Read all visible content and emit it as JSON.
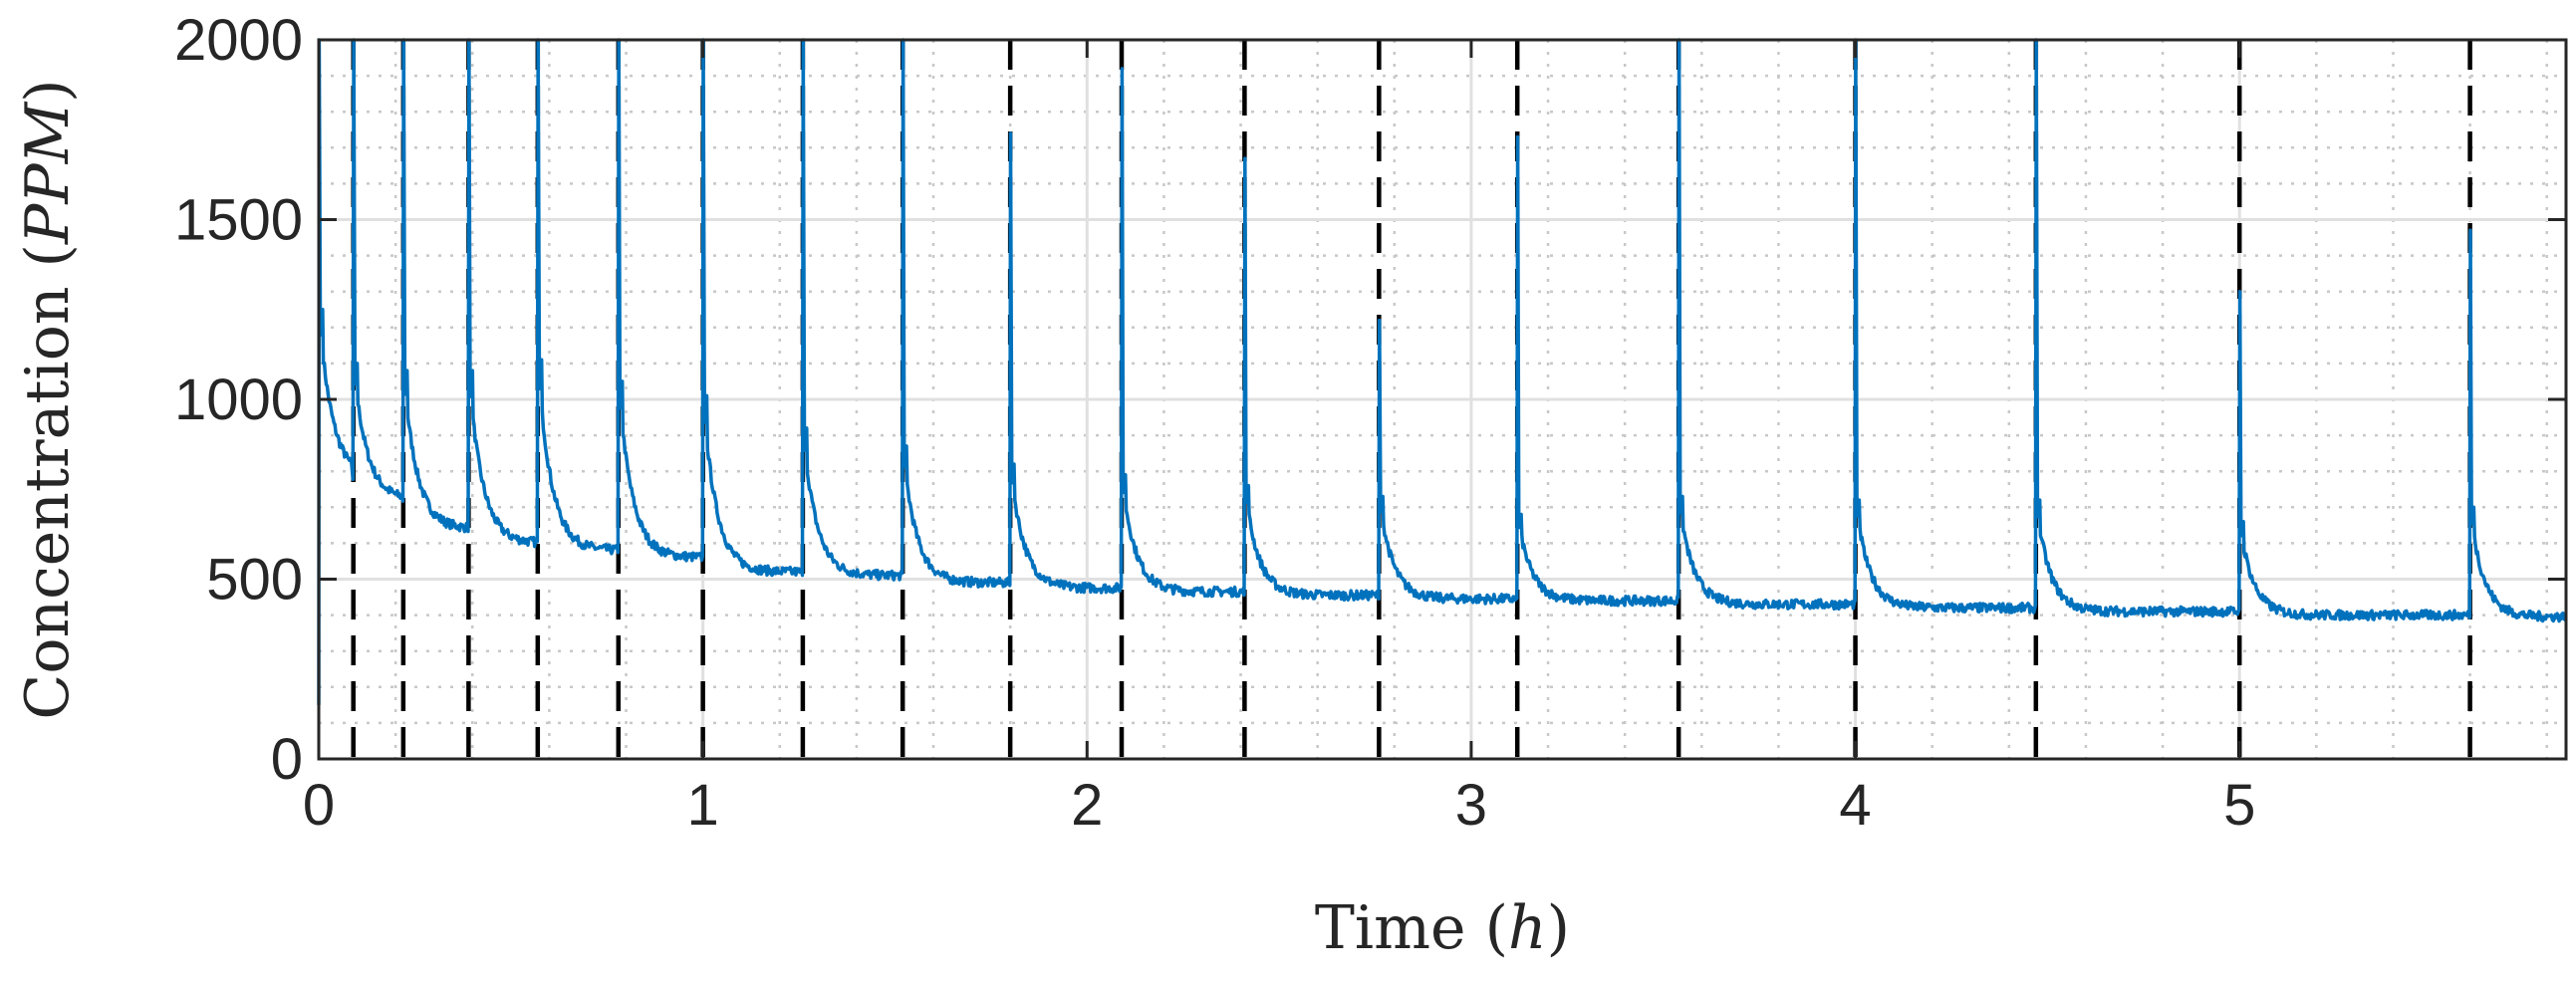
{
  "chart_data": {
    "type": "line",
    "title": "",
    "xlabel": "Time ",
    "xlabel_unit": "h",
    "ylabel": "Concentration ",
    "ylabel_unit": "PPM",
    "xlim": [
      0,
      5.85
    ],
    "ylim": [
      0,
      2000
    ],
    "x_ticks": [
      0,
      1,
      2,
      3,
      4,
      5
    ],
    "x_tick_labels": [
      "0",
      "1",
      "2",
      "3",
      "4",
      "5"
    ],
    "y_ticks": [
      0,
      500,
      1000,
      1500,
      2000
    ],
    "y_tick_labels": [
      "0",
      "500",
      "1000",
      "1500",
      "2000"
    ],
    "grid": "major solid, minor dotted",
    "line_color": "#0072BD",
    "event_line_color": "#000000",
    "event_times": [
      0.09,
      0.22,
      0.39,
      0.57,
      0.78,
      1.0,
      1.26,
      1.52,
      1.8,
      2.09,
      2.41,
      2.76,
      3.12,
      3.54,
      4.0,
      4.47,
      5.0,
      5.6
    ],
    "peaks": [
      {
        "t": 0.0,
        "peak": 2000,
        "post": 1250,
        "base": 780
      },
      {
        "t": 0.09,
        "peak": 2000,
        "post": 1100,
        "base": 720
      },
      {
        "t": 0.22,
        "peak": 2000,
        "post": 1080,
        "base": 640
      },
      {
        "t": 0.39,
        "peak": 2000,
        "post": 1080,
        "base": 600
      },
      {
        "t": 0.57,
        "peak": 2000,
        "post": 1110,
        "base": 580
      },
      {
        "t": 0.78,
        "peak": 2000,
        "post": 1050,
        "base": 560
      },
      {
        "t": 1.0,
        "peak": 2000,
        "post": 1010,
        "base": 520
      },
      {
        "t": 1.26,
        "peak": 2000,
        "post": 920,
        "base": 510
      },
      {
        "t": 1.52,
        "peak": 2000,
        "post": 870,
        "base": 490
      },
      {
        "t": 1.8,
        "peak": 1740,
        "post": 820,
        "base": 475
      },
      {
        "t": 2.09,
        "peak": 1920,
        "post": 790,
        "base": 465
      },
      {
        "t": 2.41,
        "peak": 1670,
        "post": 760,
        "base": 455
      },
      {
        "t": 2.76,
        "peak": 1220,
        "post": 730,
        "base": 445
      },
      {
        "t": 3.12,
        "peak": 1730,
        "post": 680,
        "base": 440
      },
      {
        "t": 3.54,
        "peak": 2000,
        "post": 730,
        "base": 430
      },
      {
        "t": 4.0,
        "peak": 2000,
        "post": 720,
        "base": 420
      },
      {
        "t": 4.47,
        "peak": 2000,
        "post": 720,
        "base": 410
      },
      {
        "t": 5.0,
        "peak": 1300,
        "post": 660,
        "base": 400
      },
      {
        "t": 5.6,
        "peak": 1470,
        "post": 700,
        "base": 395
      }
    ],
    "start_value": 150,
    "end_value": 385
  }
}
